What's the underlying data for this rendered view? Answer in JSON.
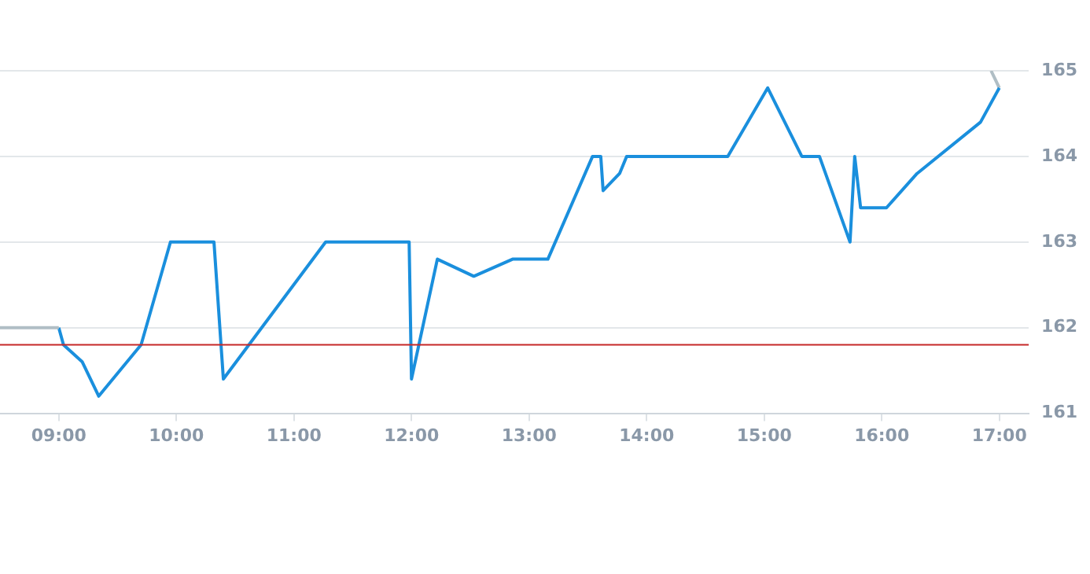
{
  "chart_data": {
    "type": "line",
    "xlim": [
      8.5,
      17.25
    ],
    "ylim": [
      161,
      165
    ],
    "xticks": [
      {
        "value": 9,
        "label": "09:00"
      },
      {
        "value": 10,
        "label": "10:00"
      },
      {
        "value": 11,
        "label": "11:00"
      },
      {
        "value": 12,
        "label": "12:00"
      },
      {
        "value": 13,
        "label": "13:00"
      },
      {
        "value": 14,
        "label": "14:00"
      },
      {
        "value": 15,
        "label": "15:00"
      },
      {
        "value": 16,
        "label": "16:00"
      },
      {
        "value": 17,
        "label": "17:00"
      }
    ],
    "yticks": [
      161,
      162,
      163,
      164,
      165
    ],
    "grid": "y",
    "legend": false,
    "marker": "none",
    "line_style": "solid",
    "ref_lines": [
      {
        "axis": "y",
        "value": 161.8,
        "color": "#c62828"
      }
    ],
    "series": [
      {
        "color": "#b0bec5",
        "x": [
          8.5,
          9.0
        ],
        "values": [
          162,
          162
        ]
      },
      {
        "color": "#1a8fdd",
        "x": [
          9.0,
          9.04,
          9.2,
          9.34,
          9.7,
          9.95,
          10.32,
          10.4,
          11.27,
          11.98,
          12.0,
          12.22,
          12.53,
          12.86,
          13.16,
          13.54,
          13.61,
          13.63,
          13.77,
          13.83,
          14.69,
          15.03,
          15.32,
          15.47,
          15.73,
          15.77,
          15.82,
          16.04,
          16.3,
          16.84,
          17.0
        ],
        "values": [
          162,
          161.8,
          161.6,
          161.2,
          161.8,
          163,
          163,
          161.4,
          163,
          163,
          161.4,
          162.8,
          162.6,
          162.8,
          162.8,
          164,
          164,
          163.6,
          163.8,
          164,
          164,
          164.8,
          164,
          164,
          163,
          164,
          163.4,
          163.4,
          163.8,
          164.4,
          164.8
        ]
      },
      {
        "color": "#b0bec5",
        "x": [
          16.93,
          17.0
        ],
        "values": [
          165,
          164.8
        ]
      }
    ]
  }
}
